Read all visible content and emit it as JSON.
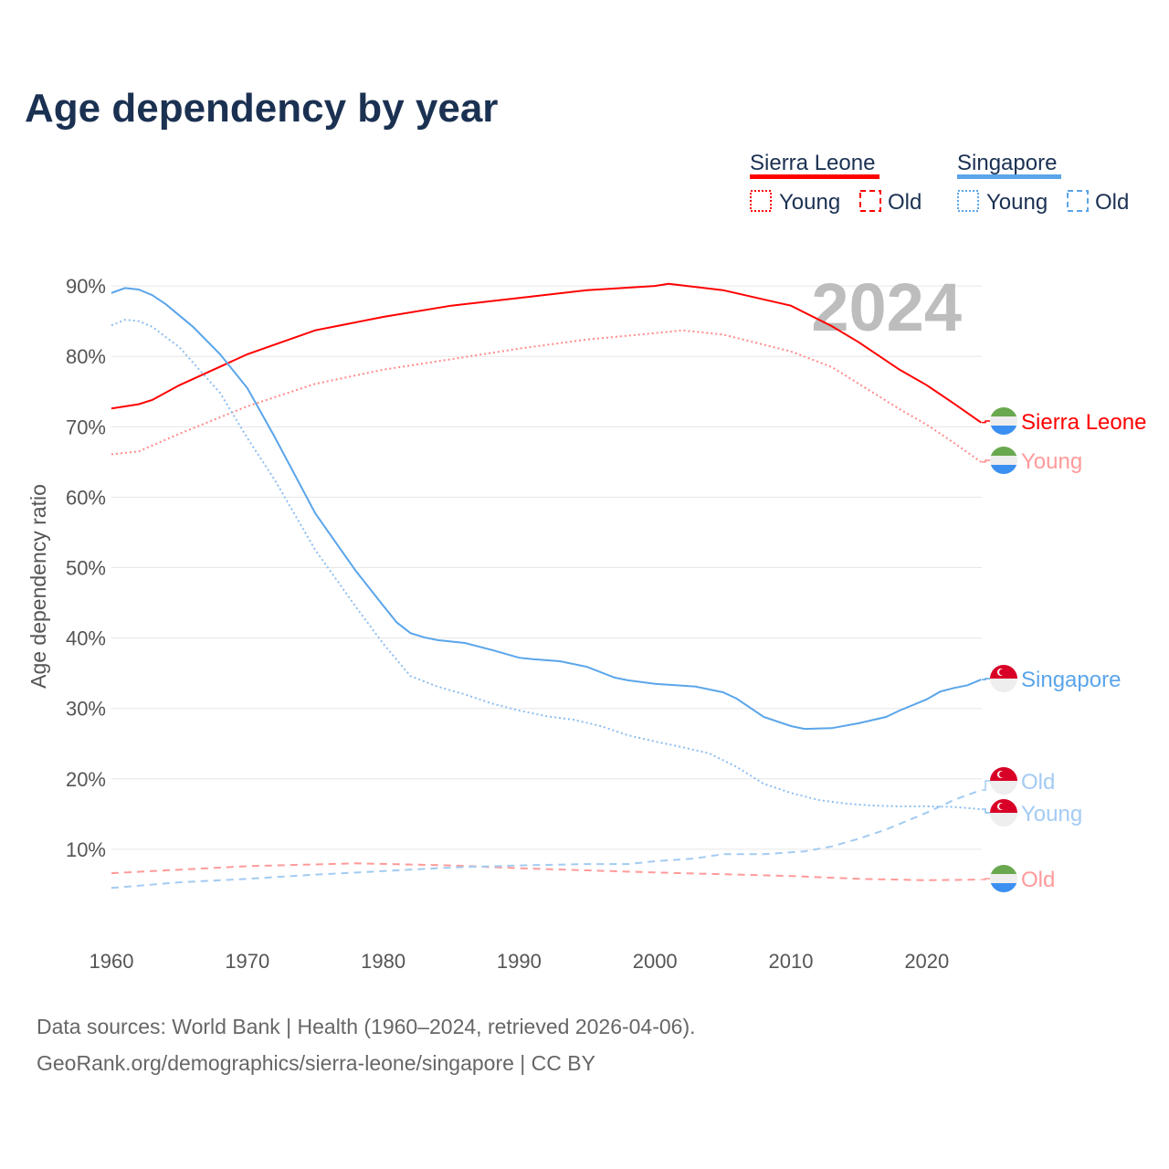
{
  "title": "Age dependency by year",
  "legend": {
    "countries": [
      {
        "name": "Sierra Leone",
        "color": "#ff0000"
      },
      {
        "name": "Singapore",
        "color": "#5aa5ea"
      }
    ],
    "young": "Young",
    "old": "Old"
  },
  "year_watermark": "2024",
  "source": {
    "line1": "Data sources: World Bank | Health (1960–2024, retrieved 2026-04-06).",
    "line2": "GeoRank.org/demographics/sierra-leone/singapore | CC BY"
  },
  "chart_data": {
    "type": "line",
    "title": "Age dependency by year",
    "xlabel": "",
    "ylabel": "Age dependency ratio",
    "xlim": [
      1960,
      2024
    ],
    "ylim": [
      0,
      90
    ],
    "x_ticks": [
      "1960",
      "1970",
      "1980",
      "1990",
      "2000",
      "2010",
      "2020"
    ],
    "y_ticks": [
      "10%",
      "20%",
      "30%",
      "40%",
      "50%",
      "60%",
      "70%",
      "80%",
      "90%"
    ],
    "grid": true,
    "series": [
      {
        "name": "Sierra Leone",
        "label": "Sierra Leone",
        "style": "solid",
        "color": "#ff0000",
        "labelColor": "#ff0000",
        "flag": "sierra-leone",
        "x": [
          1960,
          1962,
          1963,
          1965,
          1970,
          1975,
          1980,
          1985,
          1990,
          1995,
          2000,
          2001,
          2005,
          2010,
          2013,
          2015,
          2018,
          2020,
          2022,
          2024
        ],
        "y": [
          72.6,
          73.2,
          73.8,
          75.9,
          80.3,
          83.7,
          85.6,
          87.2,
          88.3,
          89.4,
          90.0,
          90.3,
          89.4,
          87.2,
          84.3,
          82.0,
          78.1,
          75.9,
          73.3,
          70.6
        ]
      },
      {
        "name": "Sierra Leone Young",
        "label": "Young",
        "style": "dotted",
        "color": "#ff8a8a",
        "labelColor": "#ff9a9a",
        "flag": "sierra-leone",
        "x": [
          1960,
          1962,
          1965,
          1970,
          1975,
          1980,
          1985,
          1990,
          1995,
          2000,
          2002,
          2005,
          2010,
          2013,
          2015,
          2018,
          2020,
          2022,
          2024
        ],
        "y": [
          66.1,
          66.5,
          69.0,
          72.9,
          76.1,
          78.1,
          79.6,
          81.1,
          82.4,
          83.3,
          83.7,
          83.1,
          80.7,
          78.5,
          76.1,
          72.5,
          70.3,
          67.7,
          65.0
        ]
      },
      {
        "name": "Sierra Leone Old",
        "label": "Old",
        "style": "dashed",
        "color": "#ff9a9a",
        "labelColor": "#ff9a9a",
        "flag": "sierra-leone",
        "x": [
          1960,
          1970,
          1978,
          1985,
          1990,
          2000,
          2010,
          2015,
          2020,
          2024
        ],
        "y": [
          6.6,
          7.6,
          8.0,
          7.7,
          7.3,
          6.7,
          6.2,
          5.8,
          5.6,
          5.7
        ]
      },
      {
        "name": "Singapore",
        "label": "Singapore",
        "style": "solid",
        "color": "#5aa5ea",
        "labelColor": "#5aa5ea",
        "flag": "singapore",
        "x": [
          1960,
          1961,
          1962,
          1963,
          1964,
          1966,
          1968,
          1970,
          1972,
          1975,
          1978,
          1980,
          1981,
          1982,
          1983,
          1984,
          1986,
          1988,
          1990,
          1991,
          1993,
          1995,
          1997,
          1998,
          2000,
          2003,
          2005,
          2006,
          2008,
          2010,
          2011,
          2013,
          2015,
          2017,
          2018,
          2020,
          2021,
          2022,
          2023,
          2024
        ],
        "y": [
          89.0,
          89.7,
          89.5,
          88.7,
          87.4,
          84.2,
          80.3,
          75.5,
          68.6,
          57.7,
          49.5,
          44.6,
          42.2,
          40.7,
          40.1,
          39.7,
          39.3,
          38.3,
          37.2,
          37.0,
          36.7,
          35.9,
          34.4,
          34.0,
          33.5,
          33.1,
          32.3,
          31.4,
          28.8,
          27.5,
          27.1,
          27.2,
          27.9,
          28.8,
          29.7,
          31.3,
          32.4,
          32.9,
          33.3,
          34.1
        ]
      },
      {
        "name": "Singapore Old",
        "label": "Old",
        "style": "dashed",
        "color": "#a3cbf2",
        "labelColor": "#a3cbf2",
        "flag": "singapore",
        "x": [
          1960,
          1965,
          1970,
          1975,
          1980,
          1985,
          1990,
          1995,
          1998,
          2000,
          2003,
          2005,
          2008,
          2011,
          2013,
          2015,
          2017,
          2020,
          2022,
          2024
        ],
        "y": [
          4.5,
          5.3,
          5.8,
          6.4,
          6.9,
          7.4,
          7.7,
          7.9,
          7.9,
          8.3,
          8.7,
          9.3,
          9.3,
          9.7,
          10.4,
          11.5,
          12.8,
          15.2,
          17.0,
          18.4
        ]
      },
      {
        "name": "Singapore Young",
        "label": "Young",
        "style": "dotted",
        "color": "#8dbdf0",
        "labelColor": "#a3cbf2",
        "flag": "singapore",
        "x": [
          1960,
          1961,
          1962,
          1963,
          1965,
          1968,
          1970,
          1972,
          1975,
          1978,
          1980,
          1982,
          1984,
          1986,
          1988,
          1990,
          1992,
          1994,
          1996,
          1998,
          2000,
          2002,
          2004,
          2006,
          2008,
          2010,
          2012,
          2014,
          2016,
          2018,
          2020,
          2022,
          2024
        ],
        "y": [
          84.4,
          85.2,
          85.0,
          84.2,
          81.3,
          74.8,
          68.4,
          62.5,
          52.5,
          44.4,
          39.2,
          34.6,
          33.1,
          32.0,
          30.7,
          29.7,
          28.9,
          28.4,
          27.5,
          26.2,
          25.3,
          24.5,
          23.6,
          21.7,
          19.3,
          18.0,
          17.0,
          16.5,
          16.2,
          16.1,
          16.1,
          16.0,
          15.7
        ]
      }
    ]
  }
}
